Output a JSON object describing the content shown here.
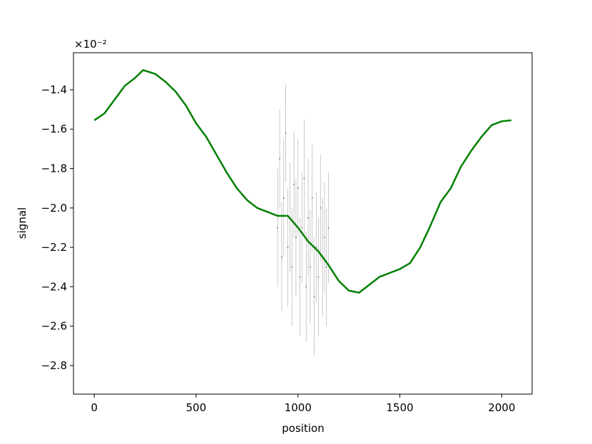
{
  "chart_data": {
    "type": "line",
    "xlabel": "position",
    "ylabel": "signal",
    "y_offset_label": "×10⁻²",
    "xlim": [
      -102,
      2149
    ],
    "ylim": [
      -2.945,
      -1.212
    ],
    "xticks": [
      0,
      500,
      1000,
      1500,
      2000
    ],
    "yticks": [
      {
        "value": -2.8,
        "label": "−2.8"
      },
      {
        "value": -2.6,
        "label": "−2.6"
      },
      {
        "value": -2.4,
        "label": "−2.4"
      },
      {
        "value": -2.2,
        "label": "−2.2"
      },
      {
        "value": -2.0,
        "label": "−2.0"
      },
      {
        "value": -1.8,
        "label": "−1.8"
      },
      {
        "value": -1.6,
        "label": "−1.6"
      },
      {
        "value": -1.4,
        "label": "−1.4"
      }
    ],
    "series": [
      {
        "type": "errorbar",
        "color": "#808080",
        "x": [
          900,
          910,
          920,
          930,
          940,
          950,
          960,
          970,
          980,
          990,
          1000,
          1010,
          1020,
          1030,
          1040,
          1050,
          1060,
          1070,
          1080,
          1090,
          1100,
          1110,
          1120,
          1130,
          1140,
          1150
        ],
        "values": [
          -2.1,
          -1.75,
          -2.25,
          -1.95,
          -1.62,
          -2.2,
          -2.05,
          -2.3,
          -1.88,
          -2.15,
          -1.9,
          -2.35,
          -2.1,
          -1.85,
          -2.4,
          -2.05,
          -2.3,
          -1.95,
          -2.45,
          -2.2,
          -2.35,
          -2.0,
          -2.25,
          -2.15,
          -2.3,
          -2.1
        ],
        "errors": [
          0.3,
          0.25,
          0.28,
          0.3,
          0.25,
          0.3,
          0.28,
          0.3,
          0.27,
          0.3,
          0.25,
          0.3,
          0.28,
          0.3,
          0.28,
          0.3,
          0.29,
          0.27,
          0.3,
          0.28,
          0.3,
          0.27,
          0.3,
          0.28,
          0.3,
          0.28
        ]
      },
      {
        "type": "line",
        "color": "#008000",
        "x": [
          0,
          50,
          100,
          150,
          200,
          240,
          300,
          350,
          400,
          450,
          500,
          550,
          600,
          650,
          700,
          750,
          800,
          850,
          900,
          950,
          1000,
          1050,
          1100,
          1150,
          1200,
          1250,
          1300,
          1350,
          1400,
          1450,
          1500,
          1550,
          1600,
          1650,
          1700,
          1750,
          1800,
          1850,
          1900,
          1950,
          2000,
          2047
        ],
        "values": [
          -1.555,
          -1.52,
          -1.45,
          -1.38,
          -1.34,
          -1.3,
          -1.32,
          -1.36,
          -1.41,
          -1.48,
          -1.57,
          -1.64,
          -1.73,
          -1.82,
          -1.9,
          -1.96,
          -2.0,
          -2.02,
          -2.04,
          -2.04,
          -2.1,
          -2.17,
          -2.22,
          -2.29,
          -2.37,
          -2.42,
          -2.43,
          -2.39,
          -2.35,
          -2.33,
          -2.31,
          -2.28,
          -2.2,
          -2.09,
          -1.97,
          -1.9,
          -1.79,
          -1.71,
          -1.64,
          -1.58,
          -1.56,
          -1.555
        ]
      }
    ]
  }
}
